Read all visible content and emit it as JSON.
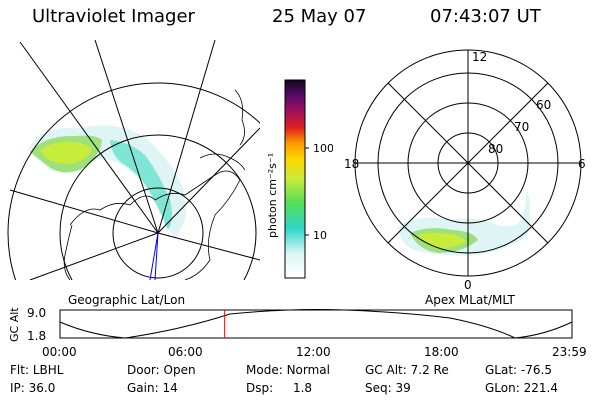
{
  "header": {
    "instrument": "Ultraviolet Imager",
    "date": "25 May 07",
    "time": "07:43:07 UT"
  },
  "left_panel": {
    "label": "Geographic Lat/Lon"
  },
  "right_panel": {
    "label": "Apex MLat/MLT",
    "mlt_labels": {
      "top": "12",
      "left": "18",
      "right": "6",
      "bottom": "0"
    },
    "lat_labels": [
      "60",
      "70",
      "80"
    ]
  },
  "colorbar": {
    "unit_label": "photon cm⁻²s⁻¹",
    "ticks": [
      "100",
      "10"
    ]
  },
  "timeline": {
    "ylabel": "GC Alt",
    "y_max": "9.0",
    "y_min": "1.8",
    "time_ticks": [
      "00:00",
      "06:00",
      "12:00",
      "18:00",
      "23:59"
    ],
    "current_time_fraction": 0.3216,
    "marker_color": "#ff0000"
  },
  "status": {
    "flt_label": "Flt:",
    "flt_value": "LBHL",
    "ip_label": "IP:",
    "ip_value": "36.0",
    "door_label": "Door:",
    "door_value": "Open",
    "gain_label": "Gain:",
    "gain_value": "14",
    "mode_label": "Mode:",
    "mode_value": "Normal",
    "dsp_label": "Dsp:",
    "dsp_value": "1.8",
    "gcalt_label": "GC Alt:",
    "gcalt_value": "7.2 Re",
    "seq_label": "Seq:",
    "seq_value": "39",
    "glat_label": "GLat:",
    "glat_value": "-76.5",
    "glon_label": "GLon:",
    "glon_value": "221.4"
  }
}
